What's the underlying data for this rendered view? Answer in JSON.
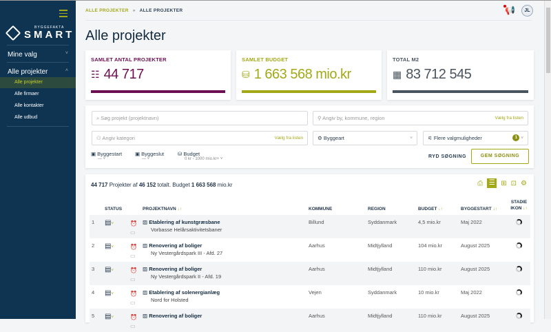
{
  "sidebar": {
    "logo_sub": "BYGGEFAKTA",
    "logo_main": "SMART",
    "sections": [
      {
        "label": "Mine valg",
        "chevron": "˅"
      },
      {
        "label": "Alle projekter",
        "chevron": "˄"
      }
    ],
    "items": [
      {
        "label": "Alle projekter",
        "active": true
      },
      {
        "label": "Alle firmaer"
      },
      {
        "label": "Alle kontakter"
      },
      {
        "label": "Alle udbud"
      }
    ]
  },
  "header": {
    "breadcrumb": [
      "ALLE PROJEKTER",
      "»",
      "ALLE PROJEKTER"
    ],
    "avatar": "JL",
    "title": "Alle projekter"
  },
  "cards": [
    {
      "title": "SAMLET ANTAL PROJEKTER",
      "value": "44 717",
      "color": "#6e0f52"
    },
    {
      "title": "SAMLET BUDGET",
      "value": "1 663 568 mio.kr",
      "color": "#a3a816"
    },
    {
      "title": "TOTAL M2",
      "value": "83 712 545",
      "color": "#4a545e"
    }
  ],
  "filters": {
    "search_placeholder": "Søg projekt (projektnavn)",
    "location_placeholder": "Angiv by, kommune, region",
    "pick": "Vælg fra listen",
    "category_placeholder": "Angiv kategori",
    "byggeart": "Byggeart",
    "more": "Flere valgmuligheder",
    "more_count": "1",
    "byggestart": "Byggestart",
    "byggestart_val": "— ˅",
    "byggeslut": "Byggeslut",
    "byggeslut_val": "— ˅",
    "budget": "Budget",
    "budget_val": "0 kr - 1000 mio.kr+ ˅",
    "clear": "RYD SØGNING",
    "save": "GEM SØGNING"
  },
  "summary": {
    "count": "44 717",
    "t1": " Projekter af ",
    "total": "46 152",
    "t2": " totalt. Budget ",
    "budget": "1 663 568",
    "t3": " mio.kr"
  },
  "table": {
    "headers": {
      "status": "STATUS",
      "name": "PROJEKTNAVN",
      "kommune": "KOMMUNE",
      "region": "REGION",
      "budget": "BUDGET",
      "byggestart": "BYGGESTART",
      "stadie": "STADIE IKON"
    },
    "sort": "↓↑",
    "rows": [
      {
        "n": "1",
        "name": "Etablering af kunstgræsbane",
        "sub": "Vorbasse Helårsaktivitetsbaner",
        "kommune": "Billund",
        "region": "Syddanmark",
        "budget": "4,5 mio.kr",
        "start": "Maj 2022"
      },
      {
        "n": "2",
        "name": "Renovering af boliger",
        "sub": "Ny Vestergårdspark III - Afd. 27",
        "kommune": "Aarhus",
        "region": "Midtjylland",
        "budget": "104 mio.kr",
        "start": "August 2025"
      },
      {
        "n": "3",
        "name": "Renovering af boliger",
        "sub": "Ny Vestergårdspark II - Afd. 19",
        "kommune": "Aarhus",
        "region": "Midtjylland",
        "budget": "110 mio.kr",
        "start": "August 2025"
      },
      {
        "n": "4",
        "name": "Etablering af solenergianlæg",
        "sub": "Nord for Holsted",
        "kommune": "Vejen",
        "region": "Syddanmark",
        "budget": "10 mio.kr",
        "start": "Maj 2022"
      },
      {
        "n": "5",
        "name": "Renovering af boliger",
        "sub": "",
        "kommune": "Aarhus",
        "region": "Midtjylland",
        "budget": "110 mio.kr",
        "start": "August 2025"
      }
    ]
  }
}
